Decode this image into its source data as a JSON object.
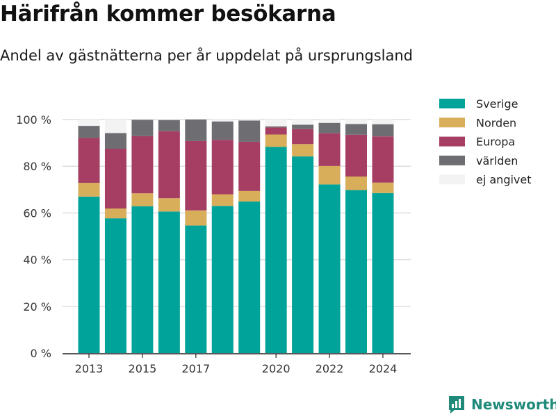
{
  "title": "Härifrån kommer besökarna",
  "subtitle": "Andel av gästnätterna per år uppdelat på ursprungsland",
  "brand": "Newsworthy",
  "chart_data": {
    "type": "bar",
    "stacked": true,
    "years": [
      2013,
      2014,
      2015,
      2016,
      2017,
      2018,
      2019,
      2020,
      2021,
      2022,
      2023,
      2024
    ],
    "x_tick_labels": [
      "2013",
      "2015",
      "2017",
      "2020",
      "2022",
      "2024"
    ],
    "x_tick_years": [
      2013,
      2015,
      2017,
      2020,
      2022,
      2024
    ],
    "ylim": [
      0,
      100
    ],
    "y_ticks": [
      0,
      20,
      40,
      60,
      80,
      100
    ],
    "y_tick_labels": [
      "0 %",
      "20 %",
      "40 %",
      "60 %",
      "80 %",
      "100 %"
    ],
    "grid": true,
    "legend_position": "right",
    "series": [
      {
        "name": "Sverige",
        "color": "#00a39a",
        "values": [
          67.0,
          57.7,
          62.9,
          60.6,
          54.6,
          63.0,
          64.9,
          88.3,
          84.2,
          72.2,
          69.8,
          68.5
        ]
      },
      {
        "name": "Norden",
        "color": "#d9ae5b",
        "values": [
          5.9,
          4.2,
          5.5,
          5.7,
          6.5,
          5.0,
          4.5,
          5.3,
          5.3,
          7.9,
          5.8,
          4.5
        ]
      },
      {
        "name": "Europa",
        "color": "#a63e63",
        "values": [
          19.2,
          25.6,
          24.5,
          28.7,
          29.7,
          23.3,
          21.1,
          3.0,
          6.4,
          14.0,
          17.9,
          19.8
        ]
      },
      {
        "name": "världen",
        "color": "#6e6e72",
        "values": [
          5.2,
          6.7,
          7.0,
          4.8,
          9.2,
          7.9,
          9.1,
          0.5,
          1.9,
          4.5,
          4.6,
          5.2
        ]
      },
      {
        "name": "ej angivet",
        "color": "#f3f3f3",
        "values": [
          2.7,
          5.8,
          0.1,
          0.2,
          0.0,
          0.8,
          0.4,
          2.9,
          2.2,
          1.4,
          1.9,
          2.0
        ]
      }
    ]
  }
}
